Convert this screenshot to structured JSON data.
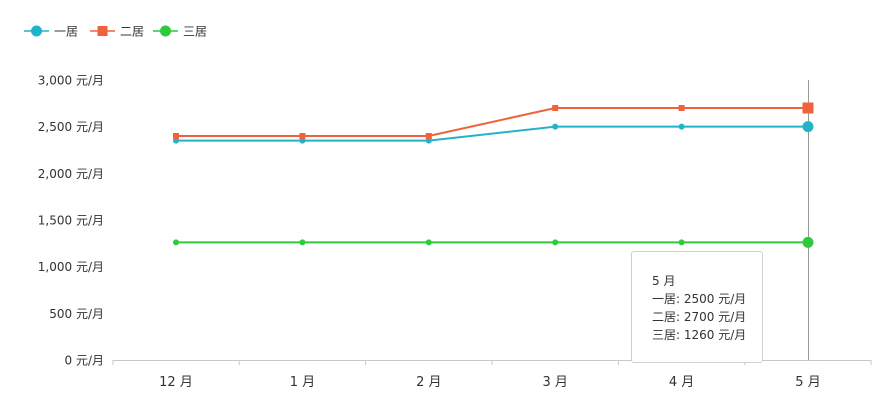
{
  "chart_data": {
    "type": "line",
    "title": "",
    "xlabel": "",
    "ylabel": "",
    "categories": [
      "12 月",
      "1 月",
      "2 月",
      "3 月",
      "4 月",
      "5 月"
    ],
    "ylim": [
      0,
      3000
    ],
    "yticks": [
      0,
      500,
      1000,
      1500,
      2000,
      2500,
      3000
    ],
    "ytick_labels": [
      "0 元/月",
      "500 元/月",
      "1,000 元/月",
      "1,500 元/月",
      "2,000 元/月",
      "2,500 元/月",
      "3,000 元/月"
    ],
    "legend_position": "top-left",
    "grid": false,
    "series": [
      {
        "name": "一居",
        "color": "#21b4c8",
        "marker": "circle",
        "values": [
          2350,
          2350,
          2350,
          2500,
          2500,
          2500
        ]
      },
      {
        "name": "二居",
        "color": "#f0623c",
        "marker": "square",
        "values": [
          2400,
          2400,
          2400,
          2700,
          2700,
          2700
        ]
      },
      {
        "name": "三居",
        "color": "#2ec93c",
        "marker": "circle",
        "values": [
          1260,
          1260,
          1260,
          1260,
          1260,
          1260
        ]
      }
    ],
    "highlight_category_index": 5,
    "tooltip": {
      "title": "5 月",
      "lines": [
        "一居: 2500 元/月",
        "二居: 2700 元/月",
        "三居: 1260 元/月"
      ]
    }
  }
}
